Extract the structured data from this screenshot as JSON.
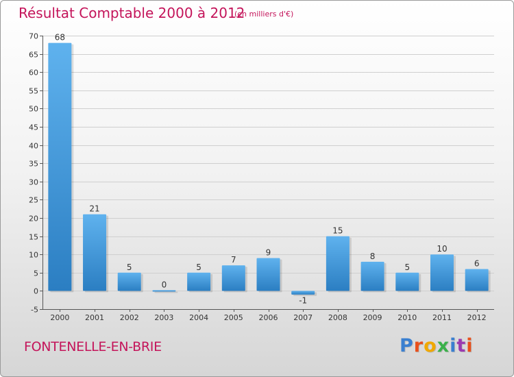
{
  "header": {
    "title": "Résultat Comptable 2000 à 2012",
    "subtitle": "(en milliers d'€)"
  },
  "footer": {
    "commune": "FONTENELLE-EN-BRIE",
    "logo_text": "Proxiti",
    "logo_colors": [
      "#3a7fd0",
      "#e8501c",
      "#f0a800",
      "#3ab04a",
      "#3a7fd0",
      "#9b3ab0",
      "#e8501c"
    ]
  },
  "colors": {
    "bar_light": "#5fb2ee",
    "bar_dark": "#2b7ec2",
    "grid": "#cfcfcf",
    "axis": "#555555"
  },
  "chart_data": {
    "type": "bar",
    "title": "Résultat Comptable 2000 à 2012",
    "subtitle": "(en milliers d'€)",
    "xlabel": "",
    "ylabel": "",
    "categories": [
      "2000",
      "2001",
      "2002",
      "2003",
      "2004",
      "2005",
      "2006",
      "2007",
      "2008",
      "2009",
      "2010",
      "2011",
      "2012"
    ],
    "values": [
      68,
      21,
      5,
      0,
      5,
      7,
      9,
      -1,
      15,
      8,
      5,
      10,
      6
    ],
    "data_labels": [
      "68",
      "21",
      "5",
      "0",
      "5",
      "7",
      "9",
      "-1",
      "15",
      "8",
      "5",
      "10",
      "6"
    ],
    "ylim": [
      -5,
      70
    ],
    "yticks": [
      -5,
      0,
      5,
      10,
      15,
      20,
      25,
      30,
      35,
      40,
      45,
      50,
      55,
      60,
      65,
      70
    ],
    "grid": true,
    "legend": "none"
  }
}
